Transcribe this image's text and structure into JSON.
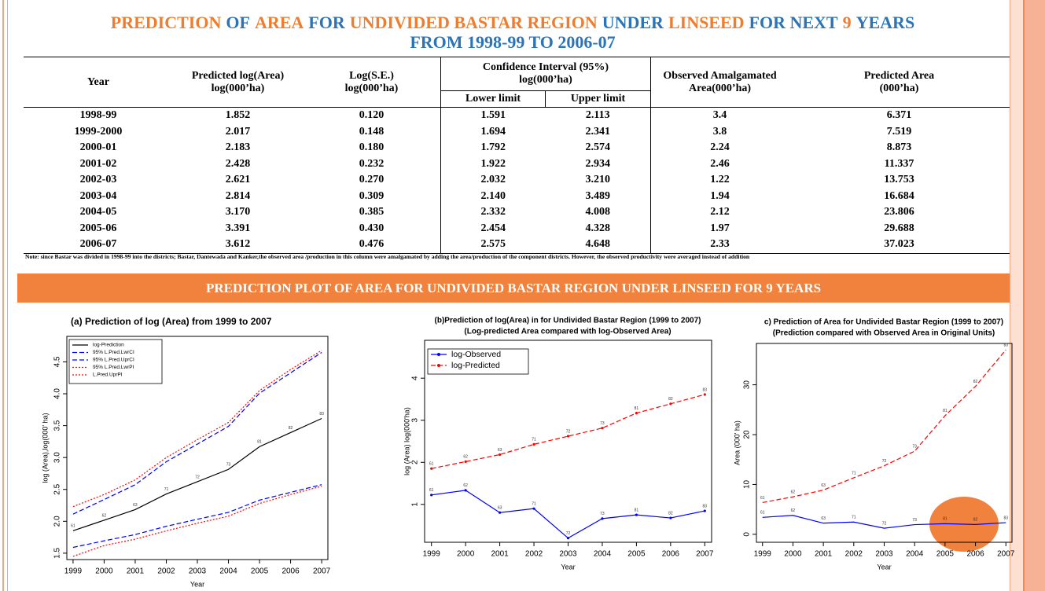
{
  "header": {
    "title_segments": [
      "PREDICTION",
      "OF",
      "AREA",
      "FOR",
      "UNDIVIDED BASTAR REGION",
      "UNDER",
      "LINSEED",
      "FOR NEXT",
      "9",
      "YEARS"
    ],
    "subtitle": "FROM 1998-99 TO 2006-07"
  },
  "table": {
    "header": [
      "Year",
      "Predicted log(Area)\nlog(000’ha)",
      "Log(S.E.)\nlog(000’ha)",
      "Confidence Interval (95%)\nlog(000’ha)",
      "Observed Amalgamated\nArea(000’ha)",
      "Predicted Area\n(000’ha)"
    ],
    "subheader": [
      "Lower limit",
      "Upper limit"
    ],
    "rows": [
      [
        "1998-99",
        "1.852",
        "0.120",
        "1.591",
        "2.113",
        "3.4",
        "6.371"
      ],
      [
        "1999-2000",
        "2.017",
        "0.148",
        "1.694",
        "2.341",
        "3.8",
        "7.519"
      ],
      [
        "2000-01",
        "2.183",
        "0.180",
        "1.792",
        "2.574",
        "2.24",
        "8.873"
      ],
      [
        "2001-02",
        "2.428",
        "0.232",
        "1.922",
        "2.934",
        "2.46",
        "11.337"
      ],
      [
        "2002-03",
        "2.621",
        "0.270",
        "2.032",
        "3.210",
        "1.22",
        "13.753"
      ],
      [
        "2003-04",
        "2.814",
        "0.309",
        "2.140",
        "3.489",
        "1.94",
        "16.684"
      ],
      [
        "2004-05",
        "3.170",
        "0.385",
        "2.332",
        "4.008",
        "2.12",
        "23.806"
      ],
      [
        "2005-06",
        "3.391",
        "0.430",
        "2.454",
        "4.328",
        "1.97",
        "29.688"
      ],
      [
        "2006-07",
        "3.612",
        "0.476",
        "2.575",
        "4.648",
        "2.33",
        "37.023"
      ]
    ]
  },
  "note": "Note: since Bastar was divided in 1998-99 into the districts; Bastar, Dantewada and Kanker,the observed area /production in this column were amalgamated by adding the area/production of the component districts. However, the observed productivity were averaged instead of addition",
  "banner": "PREDICTION PLOT OF AREA FOR UNDIVIDED BASTAR REGION UNDER LINSEED FOR 9 YEARS",
  "chart_data": [
    {
      "type": "line",
      "title": "(a) Prediction of log (Area) from 1999 to 2007",
      "xlabel": "Year",
      "ylabel": "log (Area),log(000' ha)",
      "x": [
        1999,
        2000,
        2001,
        2002,
        2003,
        2004,
        2005,
        2006,
        2007
      ],
      "xlim": [
        1998.8,
        2007.2
      ],
      "xticks": [
        1999,
        2000,
        2001,
        2002,
        2003,
        2004,
        2005,
        2006,
        2007
      ],
      "ylim": [
        1.4,
        4.9
      ],
      "yticks": [
        1.5,
        {
          "value": 2,
          "label": "2.0"
        },
        2.5,
        {
          "value": 3,
          "label": "3.0"
        },
        3.5,
        {
          "value": 4,
          "label": "4.0"
        },
        4.5
      ],
      "legend": "top-left",
      "series": [
        {
          "name": "log-Prediction",
          "color": "#000000",
          "dash": "solid",
          "values": [
            1.852,
            2.017,
            2.183,
            2.428,
            2.621,
            2.814,
            3.17,
            3.391,
            3.612
          ],
          "point_labels": [
            "61",
            "62",
            "63",
            "71",
            "72",
            "73",
            "81",
            "82",
            "83"
          ]
        },
        {
          "name": "95% L.Pred.LwrCI",
          "color": "#0000ff",
          "dash": "dashed",
          "values": [
            1.591,
            1.694,
            1.792,
            1.922,
            2.032,
            2.14,
            2.332,
            2.454,
            2.575
          ]
        },
        {
          "name": "95% L.Pred.UprCI",
          "color": "#0000ff",
          "dash": "dashed",
          "values": [
            2.113,
            2.341,
            2.574,
            2.934,
            3.21,
            3.489,
            4.008,
            4.328,
            4.648
          ]
        },
        {
          "name": "95% L.Pred.LwrPI",
          "color": "#ff0000",
          "dash": "dotted",
          "values": [
            1.45,
            1.62,
            1.72,
            1.85,
            1.97,
            2.08,
            2.28,
            2.42,
            2.55
          ]
        },
        {
          "name": "L.Pred.UprPI",
          "color": "#ff0000",
          "dash": "dotted",
          "values": [
            2.23,
            2.42,
            2.65,
            3.0,
            3.28,
            3.55,
            4.05,
            4.38,
            4.68
          ]
        }
      ]
    },
    {
      "type": "line",
      "title": "(b)Prediction of log(Area) in for Undivided Bastar Region (1999 to 2007)",
      "subtitle": "(Log-predicted Area compared with log-Observed Area)",
      "xlabel": "Year",
      "ylabel": "log (Area) log(000'ha)",
      "x": [
        1999,
        2000,
        2001,
        2002,
        2003,
        2004,
        2005,
        2006,
        2007
      ],
      "xlim": [
        1998.8,
        2007.2
      ],
      "xticks": [
        1999,
        2000,
        2001,
        2002,
        2003,
        2004,
        2005,
        2006,
        2007
      ],
      "ylim": [
        0.1,
        4.9
      ],
      "yticks": [
        1,
        2,
        3,
        4
      ],
      "legend": "top-left",
      "series": [
        {
          "name": "log-Observed",
          "color": "#0000ff",
          "dash": "solid",
          "marker": "circle",
          "values": [
            1.224,
            1.335,
            0.806,
            0.9,
            0.199,
            0.663,
            0.751,
            0.678,
            0.846
          ],
          "point_labels": [
            "61",
            "62",
            "63",
            "71",
            "72",
            "73",
            "81",
            "82",
            "83"
          ]
        },
        {
          "name": "log-Predicted",
          "color": "#ff0000",
          "dash": "dashed",
          "marker": "circle",
          "values": [
            1.852,
            2.017,
            2.183,
            2.428,
            2.621,
            2.814,
            3.17,
            3.391,
            3.612
          ],
          "point_labels": [
            "61",
            "62",
            "63",
            "71",
            "72",
            "73",
            "81",
            "82",
            "83"
          ]
        }
      ]
    },
    {
      "type": "line",
      "title": "c) Prediction of Area for Undivided Bastar Region (1999 to 2007)",
      "subtitle": "(Prediction compared with Observed Area in Original Units)",
      "xlabel": "Year",
      "ylabel": "Area (000' ha)",
      "x": [
        1999,
        2000,
        2001,
        2002,
        2003,
        2004,
        2005,
        2006,
        2007
      ],
      "xlim": [
        1998.8,
        2007.2
      ],
      "xticks": [
        1999,
        2000,
        2001,
        2002,
        2003,
        2004,
        2005,
        2006,
        2007
      ],
      "ylim": [
        -1.6,
        38.3
      ],
      "yticks": [
        0,
        10,
        20,
        30
      ],
      "series": [
        {
          "color": "#0000ff",
          "dash": "solid",
          "values": [
            3.4,
            3.8,
            2.24,
            2.46,
            1.22,
            1.94,
            2.12,
            1.97,
            2.33
          ],
          "point_labels": [
            "61",
            "62",
            "63",
            "71",
            "72",
            "73",
            "81",
            "82",
            "83"
          ]
        },
        {
          "color": "#ff0000",
          "dash": "dashed",
          "values": [
            6.371,
            7.519,
            8.873,
            11.337,
            13.753,
            16.684,
            23.806,
            29.688,
            37.023
          ],
          "point_labels": [
            "61",
            "62",
            "63",
            "71",
            "72",
            "73",
            "81",
            "82",
            "83"
          ]
        }
      ]
    }
  ]
}
